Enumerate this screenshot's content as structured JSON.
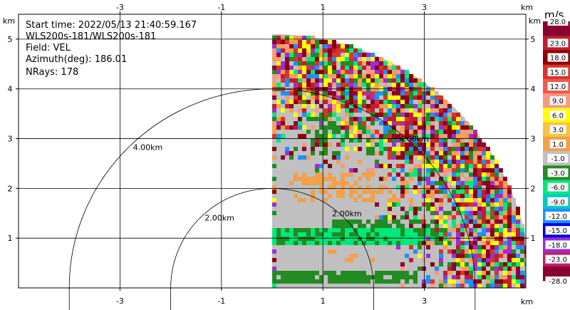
{
  "info": {
    "start_time": "Start time: 2022/05/13 21:40:59.167",
    "radar_name": "WLS200s-181/WLS200s-181",
    "field": "Field: VEL",
    "azimuth": "Azimuth(deg): 186.01",
    "nrays": "NRays: 178"
  },
  "axes": {
    "x_unit": "km",
    "y_unit": "km",
    "x_range": [
      -5,
      5
    ],
    "y_range": [
      0,
      5.5
    ],
    "x_ticks": [
      {
        "value": -3,
        "label": "-3"
      },
      {
        "value": -1,
        "label": "-1"
      },
      {
        "value": 1,
        "label": "1"
      },
      {
        "value": 3,
        "label": "3"
      }
    ],
    "y_ticks": [
      {
        "value": 1,
        "label": "1"
      },
      {
        "value": 2,
        "label": "2"
      },
      {
        "value": 3,
        "label": "3"
      },
      {
        "value": 4,
        "label": "4"
      },
      {
        "value": 5,
        "label": "5"
      }
    ],
    "grid": true
  },
  "range_rings": [
    {
      "radius_km": 2,
      "label": "2.00km"
    },
    {
      "radius_km": 4,
      "label": "4.00km"
    }
  ],
  "secondary_ring_labels": [
    "2.00km",
    "4.00km"
  ],
  "sector": {
    "start_azimuth_deg": 0,
    "end_azimuth_deg": 90,
    "max_range_km": 5.1
  },
  "colorbar": {
    "unit": "m/s",
    "bands": [
      {
        "color": "#8b0032",
        "label": "28.0"
      },
      {
        "color": "#c01e2e",
        "label": "23.0"
      },
      {
        "color": "#8b0000",
        "label": "18.0"
      },
      {
        "color": "#d9342b",
        "label": "15.0"
      },
      {
        "color": "#f05a4a",
        "label": "12.0"
      },
      {
        "color": "#f79a80",
        "label": "9.0"
      },
      {
        "color": "#ffff00",
        "label": "6.0"
      },
      {
        "color": "#f5c542",
        "label": "3.0"
      },
      {
        "color": "#f2a04a",
        "label": "1.0"
      },
      {
        "color": "#c0c0c0",
        "label": "-1.0"
      },
      {
        "color": "#228b22",
        "label": "-3.0"
      },
      {
        "color": "#00e87a",
        "label": "-6.0"
      },
      {
        "color": "#00c8c8",
        "label": "-9.0"
      },
      {
        "color": "#1e90ff",
        "label": "-12.0"
      },
      {
        "color": "#0000e0",
        "label": "-15.0"
      },
      {
        "color": "#9b30d0",
        "label": "-18.0"
      },
      {
        "color": "#c01e6e",
        "label": "-23.0"
      },
      {
        "color": "#8b0032",
        "label": "-28.0"
      }
    ]
  },
  "field_colors": {
    "background_gray": "#c0c0c0",
    "green": "#228b22",
    "bright_green": "#00e87a",
    "orange": "#f2a04a",
    "noise": [
      "#8b0032",
      "#c01e2e",
      "#d9342b",
      "#f79a80",
      "#ffff00",
      "#f2a04a",
      "#228b22",
      "#00e87a",
      "#9b30d0",
      "#1e90ff",
      "#c0c0c0",
      "#8b0000"
    ]
  }
}
